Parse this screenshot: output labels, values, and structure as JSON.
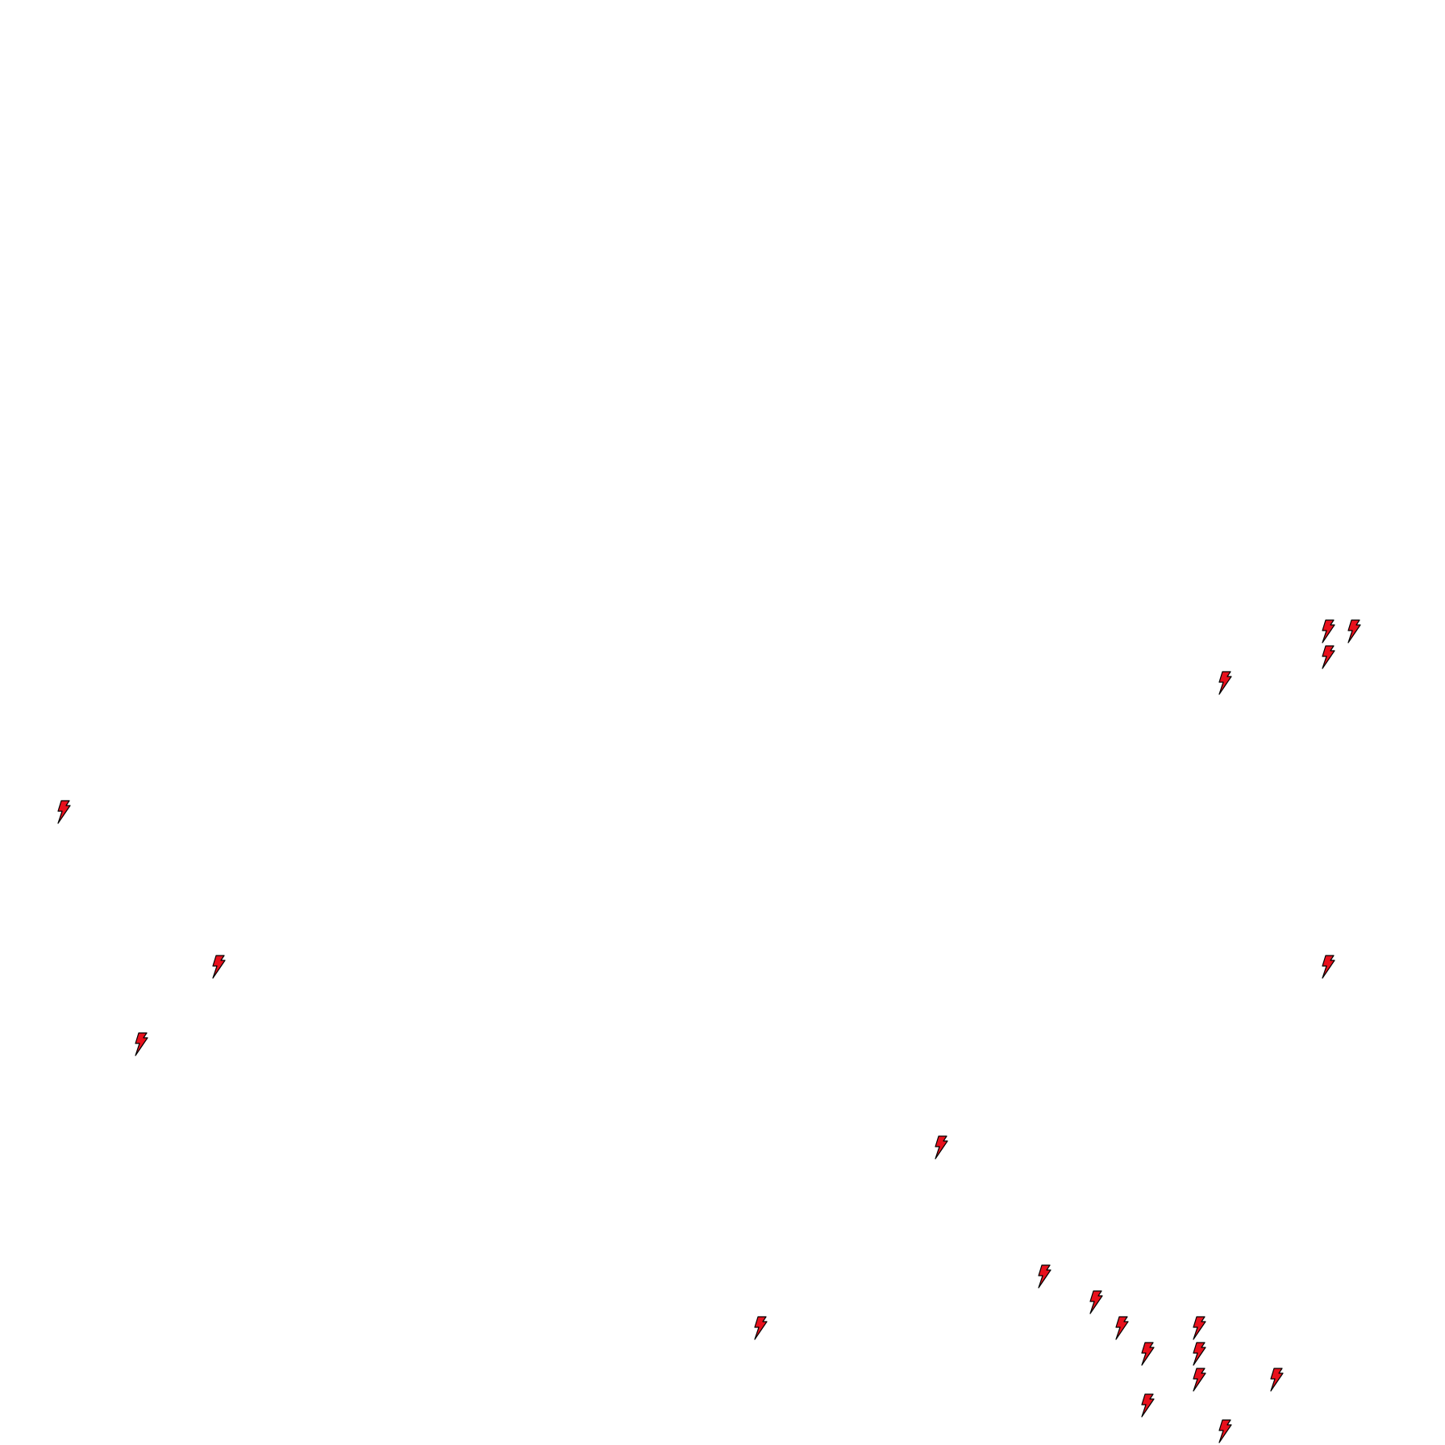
{
  "board": {
    "background": "#ffffff",
    "marker": {
      "icon": "lightning-bolt-icon",
      "fill": "#e8101c",
      "stroke": "#000000",
      "count": 20
    }
  }
}
